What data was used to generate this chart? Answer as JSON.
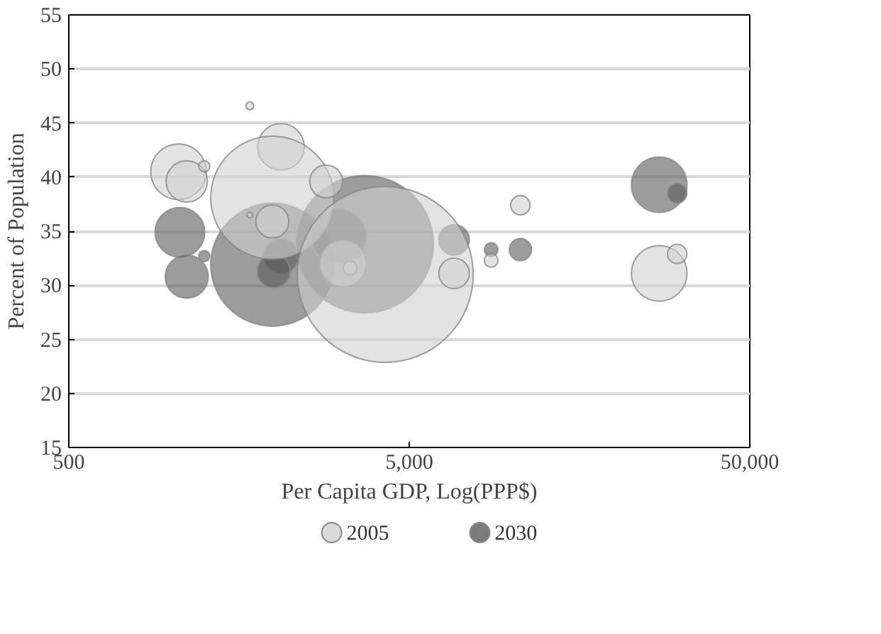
{
  "chart_data": {
    "type": "bubble",
    "xlabel": "Per Capita GDP, Log(PPP$)",
    "ylabel": "Percent of Population",
    "log": "x",
    "xlim": [
      500,
      50000
    ],
    "xticks": [
      500,
      {
        "value": 5000,
        "label": "5,000"
      },
      {
        "value": 50000,
        "label": "50,000"
      }
    ],
    "ylim": [
      15,
      55
    ],
    "yticks": [
      15,
      20,
      25,
      30,
      35,
      40,
      45,
      50,
      55
    ],
    "grid": "y",
    "legend": "bottom",
    "marker": "circle",
    "series": [
      {
        "name": "2005",
        "color": "#d0d0d0",
        "x": [
          1050,
          1110,
          1250,
          1700,
          2100,
          1980,
          1700,
          1980,
          2850,
          3200,
          3350,
          4250,
          6770,
          8700,
          10600,
          27100,
          30600
        ],
        "values": [
          40.5,
          39.6,
          41.0,
          46.6,
          42.8,
          38.1,
          36.5,
          35.9,
          39.6,
          32.0,
          31.6,
          31.0,
          31.1,
          32.3,
          37.4,
          31.1,
          32.9
        ],
        "sizes": [
          0.1,
          0.055,
          0.004,
          0.002,
          0.07,
          0.49,
          0.001,
          0.035,
          0.035,
          0.07,
          0.006,
          1,
          0.03,
          0.006,
          0.012,
          0.1,
          0.012
        ]
      },
      {
        "name": "2030",
        "color": "#5a5a5a",
        "x": [
          1060,
          1110,
          1250,
          1980,
          2100,
          2000,
          3700,
          3100,
          6770,
          8700,
          10600,
          27100,
          30600
        ],
        "values": [
          34.9,
          30.8,
          32.7,
          31.9,
          32.7,
          31.3,
          33.8,
          34.5,
          34.2,
          33.3,
          33.3,
          39.3,
          38.5
        ],
        "sizes": [
          0.08,
          0.06,
          0.004,
          0.49,
          0.04,
          0.035,
          0.61,
          0.1,
          0.03,
          0.006,
          0.016,
          0.1,
          0.012
        ]
      }
    ]
  }
}
